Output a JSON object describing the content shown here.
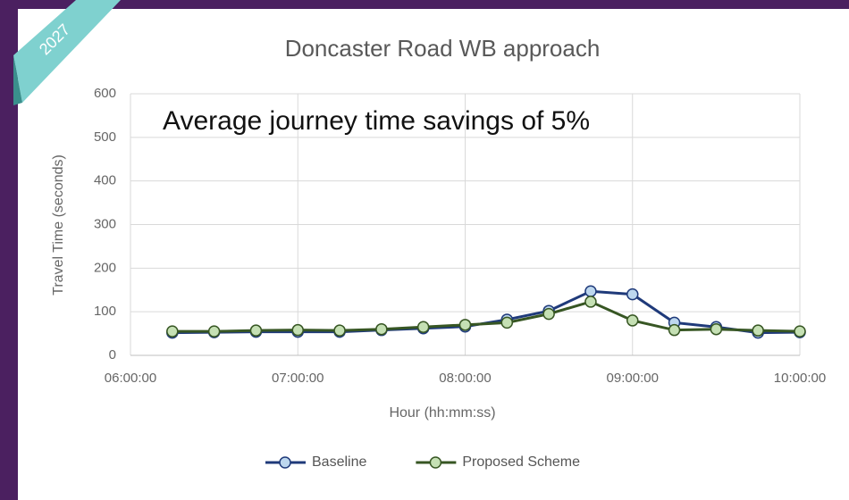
{
  "badge": "2027",
  "chart_data": {
    "type": "line",
    "title": "Doncaster Road WB approach",
    "annotation": "Average journey time savings of 5%",
    "x_label": "Hour (hh:mm:ss)",
    "y_label": "Travel Time (seconds)",
    "x": [
      6.25,
      6.5,
      6.75,
      7,
      7.25,
      7.5,
      7.75,
      8,
      8.25,
      8.5,
      8.75,
      9,
      9.25,
      9.5,
      9.75,
      10
    ],
    "series": [
      {
        "name": "Baseline",
        "color": "#1f3a7a",
        "marker_color": "#bdd7ee",
        "values": [
          52,
          53,
          54,
          54,
          54,
          58,
          62,
          66,
          82,
          102,
          147,
          140,
          75,
          65,
          52,
          53
        ]
      },
      {
        "name": "Proposed Scheme",
        "color": "#375623",
        "marker_color": "#c5e0b4",
        "values": [
          55,
          55,
          57,
          58,
          57,
          60,
          65,
          70,
          75,
          95,
          123,
          80,
          58,
          60,
          57,
          55
        ]
      }
    ],
    "xlim": [
      6,
      10
    ],
    "xticks": [
      {
        "value": 6,
        "label": "06:00:00"
      },
      {
        "value": 7,
        "label": "07:00:00"
      },
      {
        "value": 8,
        "label": "08:00:00"
      },
      {
        "value": 9,
        "label": "09:00:00"
      },
      {
        "value": 10,
        "label": "10:00:00"
      }
    ],
    "ylim": [
      0,
      600
    ],
    "yticks": [
      0,
      100,
      200,
      300,
      400,
      500,
      600
    ],
    "grid": true,
    "legend": "bottom"
  }
}
